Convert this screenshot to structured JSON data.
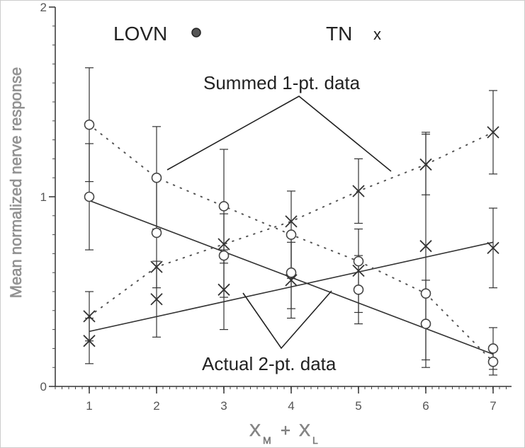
{
  "chart_data": {
    "type": "line",
    "xlabel": "X",
    "xlabel_sub_m": "M",
    "xlabel_plus": "+",
    "xlabel_x2": "X",
    "xlabel_sub_l": "L",
    "ylabel": "Mean normalized nerve response",
    "xlim": [
      0.5,
      7.3
    ],
    "ylim": [
      0,
      2
    ],
    "x_ticks": [
      "1",
      "2",
      "3",
      "4",
      "5",
      "6",
      "7"
    ],
    "y_ticks": [
      "0",
      "1",
      "2"
    ],
    "grid": false,
    "legend": [
      {
        "label": "LOVN",
        "marker": "●"
      },
      {
        "label": "TN",
        "marker": "x"
      }
    ],
    "annotations": {
      "summed": "Summed 1-pt. data",
      "actual": "Actual 2-pt. data"
    },
    "series": [
      {
        "name": "LOVN",
        "marker": "circle",
        "style": "points",
        "x": [
          1,
          2,
          3,
          4,
          5,
          6,
          7
        ],
        "y": [
          1.0,
          0.81,
          0.69,
          0.6,
          0.51,
          0.33,
          0.2
        ],
        "err": [
          0.28,
          0.29,
          0.22,
          0.19,
          0.18,
          0.23,
          0.11
        ]
      },
      {
        "name": "TN",
        "marker": "x",
        "style": "points",
        "x": [
          1,
          2,
          3,
          4,
          5,
          6,
          7
        ],
        "y": [
          0.24,
          0.46,
          0.51,
          0.56,
          0.61,
          0.74,
          0.73
        ],
        "err": [
          0.12,
          0.2,
          0.21,
          0.2,
          0.22,
          0.6,
          0.21
        ]
      },
      {
        "name": "LOVN summed",
        "marker": "circle",
        "style": "dotted",
        "x": [
          1,
          2,
          3,
          4,
          5,
          6,
          7
        ],
        "y": [
          1.38,
          1.1,
          0.95,
          0.8,
          0.66,
          0.49,
          0.13
        ],
        "err": [
          0.3,
          0.27,
          0.3,
          0.23,
          0.0,
          0.0,
          0.07
        ]
      },
      {
        "name": "TN summed",
        "marker": "x",
        "style": "dotted",
        "x": [
          1,
          2,
          3,
          4,
          5,
          6,
          7
        ],
        "y": [
          0.37,
          0.63,
          0.75,
          0.87,
          1.03,
          1.17,
          1.34
        ],
        "err": [
          0.13,
          0.0,
          0.0,
          0.0,
          0.17,
          0.16,
          0.22
        ]
      }
    ],
    "fit_lines": [
      {
        "x": [
          1,
          7
        ],
        "y": [
          0.98,
          0.17
        ]
      },
      {
        "x": [
          1,
          7
        ],
        "y": [
          0.29,
          0.76
        ]
      }
    ]
  }
}
